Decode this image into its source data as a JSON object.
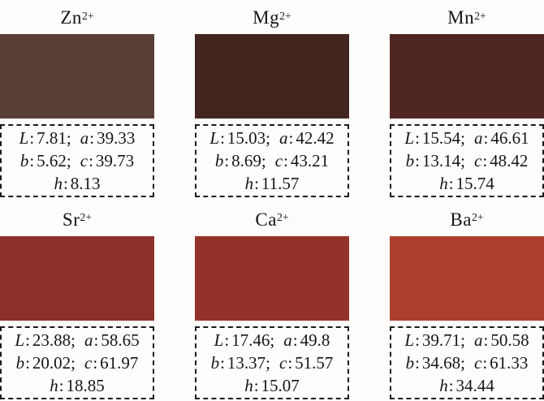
{
  "figure": {
    "background": "#fefdfb",
    "text_color": "#161616",
    "border_color": "#1b1b1b"
  },
  "punctuation": {
    "colon": ":",
    "semicolon": ";"
  },
  "labels": {
    "L": "L",
    "a": "a",
    "b": "b",
    "c": "c",
    "h": "h"
  },
  "cells": [
    {
      "ion": "Zn",
      "charge": "2+",
      "color": "#593e37",
      "values": {
        "L": "7.81",
        "a": "39.33",
        "b": "5.62",
        "c": "39.73",
        "h": "8.13"
      }
    },
    {
      "ion": "Mg",
      "charge": "2+",
      "color": "#432520",
      "values": {
        "L": "15.03",
        "a": "42.42",
        "b": "8.69",
        "c": "43.21",
        "h": "11.57"
      }
    },
    {
      "ion": "Mn",
      "charge": "2+",
      "color": "#502622",
      "values": {
        "L": "15.54",
        "a": "46.61",
        "b": "13.14",
        "c": "48.42",
        "h": "15.74"
      }
    },
    {
      "ion": "Sr",
      "charge": "2+",
      "color": "#8d2f2a",
      "values": {
        "L": "23.88",
        "a": "58.65",
        "b": "20.02",
        "c": "61.97",
        "h": "18.85"
      }
    },
    {
      "ion": "Ca",
      "charge": "2+",
      "color": "#943229",
      "values": {
        "L": "17.46",
        "a": "49.8",
        "b": "13.37",
        "c": "51.57",
        "h": "15.07"
      }
    },
    {
      "ion": "Ba",
      "charge": "2+",
      "color": "#ad3e2d",
      "values": {
        "L": "39.71",
        "a": "50.58",
        "b": "34.68",
        "c": "61.33",
        "h": "34.44"
      }
    }
  ],
  "chart_data": {
    "type": "table",
    "title": "",
    "categories": [
      "Zn2+",
      "Mg2+",
      "Mn2+",
      "Sr2+",
      "Ca2+",
      "Ba2+"
    ],
    "series": [
      {
        "name": "L",
        "values": [
          7.81,
          15.03,
          15.54,
          23.88,
          17.46,
          39.71
        ]
      },
      {
        "name": "a",
        "values": [
          39.33,
          42.42,
          46.61,
          58.65,
          49.8,
          50.58
        ]
      },
      {
        "name": "b",
        "values": [
          5.62,
          8.69,
          13.14,
          20.02,
          13.37,
          34.68
        ]
      },
      {
        "name": "c",
        "values": [
          39.73,
          43.21,
          48.42,
          61.97,
          51.57,
          61.33
        ]
      },
      {
        "name": "h",
        "values": [
          8.13,
          11.57,
          15.74,
          18.85,
          15.07,
          34.44
        ]
      }
    ],
    "swatch_colors": [
      "#593e37",
      "#432520",
      "#502622",
      "#8d2f2a",
      "#943229",
      "#ad3e2d"
    ],
    "layout": "2 rows x 3 columns of color swatches with dashed value boxes"
  }
}
